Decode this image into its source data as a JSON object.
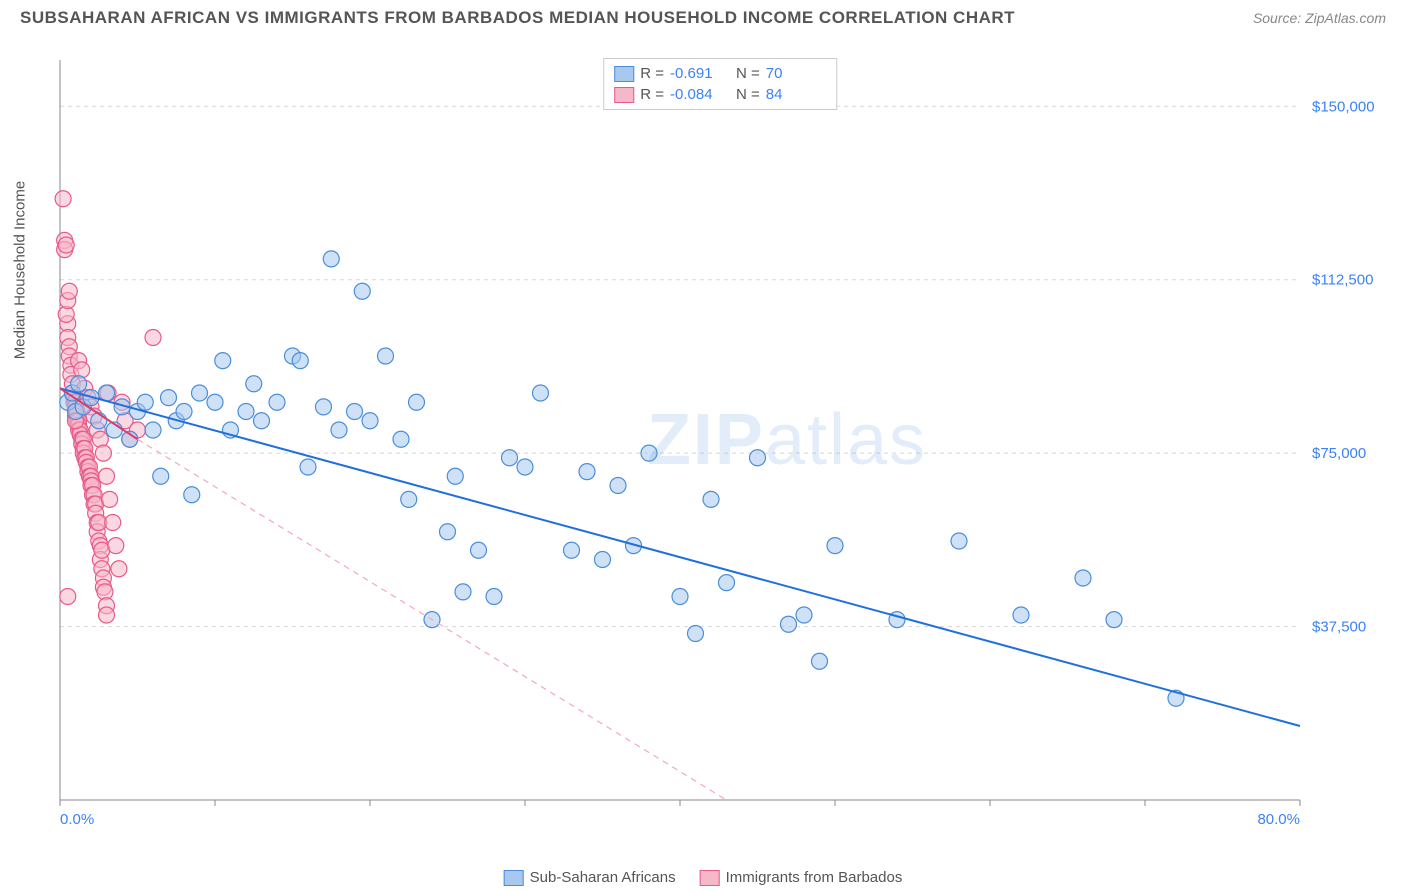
{
  "header": {
    "title": "SUBSAHARAN AFRICAN VS IMMIGRANTS FROM BARBADOS MEDIAN HOUSEHOLD INCOME CORRELATION CHART",
    "source": "Source: ZipAtlas.com"
  },
  "chart": {
    "type": "scatter",
    "ylabel": "Median Household Income",
    "watermark_a": "ZIP",
    "watermark_b": "atlas",
    "xlim": [
      0,
      80
    ],
    "ylim": [
      0,
      160000
    ],
    "x_ticks": [
      0,
      10,
      20,
      30,
      40,
      50,
      60,
      70,
      80
    ],
    "x_tick_labels_shown": {
      "start": "0.0%",
      "end": "80.0%"
    },
    "y_ticks": [
      37500,
      75000,
      112500,
      150000
    ],
    "y_tick_labels": [
      "$37,500",
      "$75,000",
      "$112,500",
      "$150,000"
    ],
    "y_grid_dash": "4,4",
    "background_color": "#ffffff",
    "grid_color": "#d8d8d8",
    "axis_color": "#888888",
    "marker_radius": 8,
    "marker_opacity": 0.55,
    "marker_stroke_width": 1.2,
    "line_width": 2,
    "series": [
      {
        "name": "Sub-Saharan Africans",
        "color_fill": "#a8c8f0",
        "color_stroke": "#4a8edb",
        "trend_solid_color": "#1f6fe0",
        "r": "-0.691",
        "n": "70",
        "trend": {
          "x1": 0,
          "y1": 89000,
          "x2": 80,
          "y2": 16000
        },
        "points": [
          [
            0.5,
            86000
          ],
          [
            0.8,
            88000
          ],
          [
            1.0,
            84000
          ],
          [
            1.2,
            90000
          ],
          [
            1.5,
            85000
          ],
          [
            2.0,
            87000
          ],
          [
            2.5,
            82000
          ],
          [
            3.0,
            88000
          ],
          [
            3.5,
            80000
          ],
          [
            4.0,
            85000
          ],
          [
            4.5,
            78000
          ],
          [
            5.0,
            84000
          ],
          [
            5.5,
            86000
          ],
          [
            6.0,
            80000
          ],
          [
            6.5,
            70000
          ],
          [
            7.0,
            87000
          ],
          [
            7.5,
            82000
          ],
          [
            8.0,
            84000
          ],
          [
            8.5,
            66000
          ],
          [
            9.0,
            88000
          ],
          [
            10.0,
            86000
          ],
          [
            10.5,
            95000
          ],
          [
            11.0,
            80000
          ],
          [
            12.0,
            84000
          ],
          [
            12.5,
            90000
          ],
          [
            13.0,
            82000
          ],
          [
            14.0,
            86000
          ],
          [
            15.0,
            96000
          ],
          [
            15.5,
            95000
          ],
          [
            16.0,
            72000
          ],
          [
            17.0,
            85000
          ],
          [
            17.5,
            117000
          ],
          [
            18.0,
            80000
          ],
          [
            19.0,
            84000
          ],
          [
            19.5,
            110000
          ],
          [
            20.0,
            82000
          ],
          [
            21.0,
            96000
          ],
          [
            22.0,
            78000
          ],
          [
            22.5,
            65000
          ],
          [
            23.0,
            86000
          ],
          [
            24.0,
            39000
          ],
          [
            25.0,
            58000
          ],
          [
            25.5,
            70000
          ],
          [
            26.0,
            45000
          ],
          [
            27.0,
            54000
          ],
          [
            28.0,
            44000
          ],
          [
            29.0,
            74000
          ],
          [
            30.0,
            72000
          ],
          [
            31.0,
            88000
          ],
          [
            33.0,
            54000
          ],
          [
            34.0,
            71000
          ],
          [
            35.0,
            52000
          ],
          [
            36.0,
            68000
          ],
          [
            37.0,
            55000
          ],
          [
            38.0,
            75000
          ],
          [
            40.0,
            44000
          ],
          [
            41.0,
            36000
          ],
          [
            42.0,
            65000
          ],
          [
            43.0,
            47000
          ],
          [
            45.0,
            74000
          ],
          [
            47.0,
            38000
          ],
          [
            48.0,
            40000
          ],
          [
            49.0,
            30000
          ],
          [
            50.0,
            55000
          ],
          [
            54.0,
            39000
          ],
          [
            58.0,
            56000
          ],
          [
            62.0,
            40000
          ],
          [
            66.0,
            48000
          ],
          [
            68.0,
            39000
          ],
          [
            72.0,
            22000
          ]
        ]
      },
      {
        "name": "Immigrants from Barbados",
        "color_fill": "#f5b8c8",
        "color_stroke": "#e85a8a",
        "trend_solid_color": "#e03a6a",
        "trend_dash_color": "#f5a8b8",
        "r": "-0.084",
        "n": "84",
        "trend_solid": {
          "x1": 0,
          "y1": 89000,
          "x2": 5,
          "y2": 78000
        },
        "trend_dash": {
          "x1": 5,
          "y1": 78000,
          "x2": 43,
          "y2": 0
        },
        "points": [
          [
            0.2,
            130000
          ],
          [
            0.3,
            121000
          ],
          [
            0.3,
            119000
          ],
          [
            0.4,
            120000
          ],
          [
            0.5,
            103000
          ],
          [
            0.5,
            100000
          ],
          [
            0.6,
            98000
          ],
          [
            0.6,
            96000
          ],
          [
            0.7,
            94000
          ],
          [
            0.7,
            92000
          ],
          [
            0.8,
            90000
          ],
          [
            0.8,
            88000
          ],
          [
            0.9,
            87000
          ],
          [
            0.9,
            86000
          ],
          [
            1.0,
            86000
          ],
          [
            1.0,
            85000
          ],
          [
            1.0,
            83000
          ],
          [
            1.1,
            84000
          ],
          [
            1.1,
            82000
          ],
          [
            1.2,
            82000
          ],
          [
            1.2,
            81000
          ],
          [
            1.2,
            80000
          ],
          [
            1.3,
            80000
          ],
          [
            1.3,
            79000
          ],
          [
            1.4,
            78000
          ],
          [
            1.4,
            77000
          ],
          [
            1.5,
            78000
          ],
          [
            1.5,
            76000
          ],
          [
            1.5,
            75000
          ],
          [
            1.6,
            76000
          ],
          [
            1.6,
            74000
          ],
          [
            1.7,
            74000
          ],
          [
            1.7,
            73000
          ],
          [
            1.8,
            72000
          ],
          [
            1.8,
            71000
          ],
          [
            1.9,
            72000
          ],
          [
            1.9,
            70000
          ],
          [
            2.0,
            70000
          ],
          [
            2.0,
            69000
          ],
          [
            2.0,
            68000
          ],
          [
            2.1,
            68000
          ],
          [
            2.1,
            66000
          ],
          [
            2.2,
            66000
          ],
          [
            2.2,
            64000
          ],
          [
            2.3,
            64000
          ],
          [
            2.3,
            62000
          ],
          [
            2.4,
            60000
          ],
          [
            2.4,
            58000
          ],
          [
            2.5,
            60000
          ],
          [
            2.5,
            56000
          ],
          [
            2.6,
            55000
          ],
          [
            2.6,
            52000
          ],
          [
            2.7,
            54000
          ],
          [
            2.7,
            50000
          ],
          [
            2.8,
            48000
          ],
          [
            2.8,
            46000
          ],
          [
            2.9,
            45000
          ],
          [
            3.0,
            42000
          ],
          [
            3.0,
            40000
          ],
          [
            3.1,
            88000
          ],
          [
            0.4,
            105000
          ],
          [
            0.5,
            108000
          ],
          [
            0.6,
            110000
          ],
          [
            1.2,
            95000
          ],
          [
            1.4,
            93000
          ],
          [
            1.6,
            89000
          ],
          [
            1.8,
            87000
          ],
          [
            2.0,
            85000
          ],
          [
            2.2,
            83000
          ],
          [
            2.4,
            80000
          ],
          [
            2.6,
            78000
          ],
          [
            2.8,
            75000
          ],
          [
            3.0,
            70000
          ],
          [
            3.2,
            65000
          ],
          [
            3.4,
            60000
          ],
          [
            3.6,
            55000
          ],
          [
            3.8,
            50000
          ],
          [
            4.0,
            86000
          ],
          [
            4.2,
            82000
          ],
          [
            4.5,
            78000
          ],
          [
            5.0,
            80000
          ],
          [
            6.0,
            100000
          ],
          [
            0.5,
            44000
          ],
          [
            1.0,
            82000
          ]
        ]
      }
    ],
    "bottom_legend": [
      {
        "label": "Sub-Saharan Africans",
        "series": 0
      },
      {
        "label": "Immigrants from Barbados",
        "series": 1
      }
    ]
  }
}
